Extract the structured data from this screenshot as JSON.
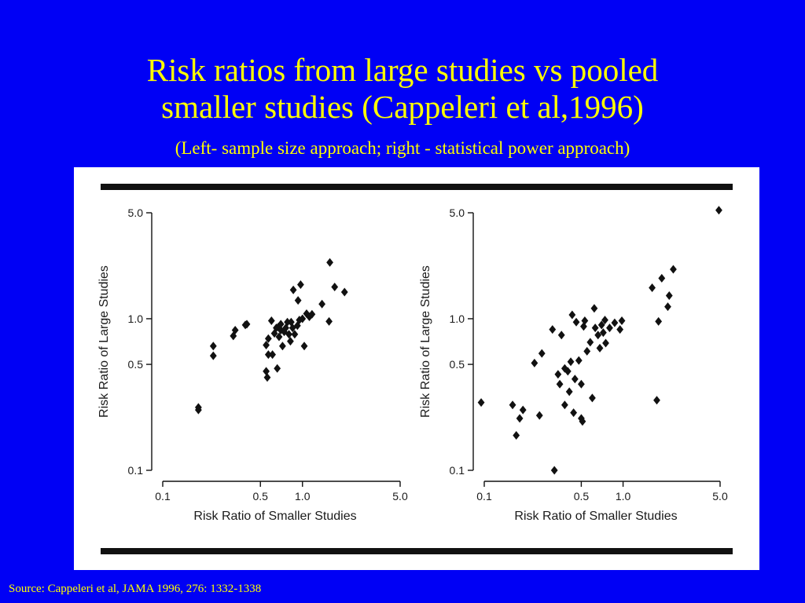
{
  "slide": {
    "title_line1": "Risk ratios from large studies vs pooled",
    "title_line2": "smaller studies (Cappeleri et al,1996)",
    "subtitle": "(Left- sample size approach; right - statistical power approach)",
    "source": "Source: Cappeleri et al, JAMA 1996, 276: 1332-1338",
    "colors": {
      "background": "#0000f5",
      "text": "#ffff00",
      "figure_bg": "#ffffff",
      "ink": "#111111"
    }
  },
  "chart_data": [
    {
      "type": "scatter",
      "title": "",
      "xlabel": "Risk Ratio of Smaller Studies",
      "ylabel": "Risk Ratio of Large Studies",
      "x_scale": "log",
      "y_scale": "log",
      "xlim": [
        0.1,
        5.0
      ],
      "ylim": [
        0.1,
        5.0
      ],
      "x_ticks": [
        {
          "v": 0.1,
          "label": "0.1"
        },
        {
          "v": 0.5,
          "label": "0.5"
        },
        {
          "v": 1.0,
          "label": "1.0"
        },
        {
          "v": 5.0,
          "label": "5.0"
        }
      ],
      "y_ticks": [
        {
          "v": 0.1,
          "label": "0.1"
        },
        {
          "v": 0.5,
          "label": "0.5"
        },
        {
          "v": 1.0,
          "label": "1.0"
        },
        {
          "v": 5.0,
          "label": "5.0"
        }
      ],
      "grid": false,
      "marker": "diamond",
      "points": [
        [
          0.18,
          0.26
        ],
        [
          0.18,
          0.25
        ],
        [
          0.23,
          0.66
        ],
        [
          0.23,
          0.57
        ],
        [
          0.32,
          0.77
        ],
        [
          0.33,
          0.84
        ],
        [
          0.39,
          0.91
        ],
        [
          0.4,
          0.92
        ],
        [
          0.55,
          0.45
        ],
        [
          0.56,
          0.41
        ],
        [
          0.57,
          0.58
        ],
        [
          0.55,
          0.67
        ],
        [
          0.57,
          0.74
        ],
        [
          0.6,
          0.97
        ],
        [
          0.61,
          0.58
        ],
        [
          0.63,
          0.8
        ],
        [
          0.65,
          0.87
        ],
        [
          0.66,
          0.47
        ],
        [
          0.67,
          0.88
        ],
        [
          0.68,
          0.76
        ],
        [
          0.7,
          0.84
        ],
        [
          0.7,
          0.92
        ],
        [
          0.72,
          0.66
        ],
        [
          0.74,
          0.82
        ],
        [
          0.76,
          0.87
        ],
        [
          0.78,
          0.95
        ],
        [
          0.8,
          0.79
        ],
        [
          0.82,
          0.71
        ],
        [
          0.83,
          0.95
        ],
        [
          0.85,
          0.87
        ],
        [
          0.86,
          1.55
        ],
        [
          0.88,
          0.79
        ],
        [
          0.92,
          0.9
        ],
        [
          0.93,
          1.32
        ],
        [
          0.95,
          0.98
        ],
        [
          0.97,
          1.68
        ],
        [
          1.0,
          1.0
        ],
        [
          1.03,
          0.66
        ],
        [
          1.07,
          1.08
        ],
        [
          1.12,
          1.03
        ],
        [
          1.17,
          1.07
        ],
        [
          1.38,
          1.25
        ],
        [
          1.55,
          0.96
        ],
        [
          1.57,
          2.35
        ],
        [
          1.7,
          1.62
        ],
        [
          2.0,
          1.5
        ]
      ]
    },
    {
      "type": "scatter",
      "title": "",
      "xlabel": "Risk Ratio of Smaller Studies",
      "ylabel": "Risk Ratio of Large Studies",
      "x_scale": "log",
      "y_scale": "log",
      "xlim": [
        0.1,
        5.0
      ],
      "ylim": [
        0.1,
        5.0
      ],
      "x_ticks": [
        {
          "v": 0.1,
          "label": "0.1"
        },
        {
          "v": 0.5,
          "label": "0.5"
        },
        {
          "v": 1.0,
          "label": "1.0"
        },
        {
          "v": 5.0,
          "label": "5.0"
        }
      ],
      "y_ticks": [
        {
          "v": 0.1,
          "label": "0.1"
        },
        {
          "v": 0.5,
          "label": "0.5"
        },
        {
          "v": 1.0,
          "label": "1.0"
        },
        {
          "v": 5.0,
          "label": "5.0"
        }
      ],
      "grid": false,
      "marker": "diamond",
      "points": [
        [
          0.095,
          0.28
        ],
        [
          0.16,
          0.27
        ],
        [
          0.17,
          0.17
        ],
        [
          0.18,
          0.22
        ],
        [
          0.19,
          0.25
        ],
        [
          0.23,
          0.51
        ],
        [
          0.25,
          0.23
        ],
        [
          0.26,
          0.59
        ],
        [
          0.31,
          0.85
        ],
        [
          0.32,
          0.1
        ],
        [
          0.34,
          0.43
        ],
        [
          0.35,
          0.37
        ],
        [
          0.36,
          0.78
        ],
        [
          0.38,
          0.27
        ],
        [
          0.38,
          0.47
        ],
        [
          0.4,
          0.45
        ],
        [
          0.41,
          0.33
        ],
        [
          0.42,
          0.52
        ],
        [
          0.43,
          1.06
        ],
        [
          0.44,
          0.24
        ],
        [
          0.45,
          0.4
        ],
        [
          0.46,
          0.95
        ],
        [
          0.48,
          0.53
        ],
        [
          0.5,
          0.37
        ],
        [
          0.5,
          0.22
        ],
        [
          0.51,
          0.21
        ],
        [
          0.52,
          0.89
        ],
        [
          0.53,
          0.97
        ],
        [
          0.55,
          0.61
        ],
        [
          0.58,
          0.7
        ],
        [
          0.6,
          0.3
        ],
        [
          0.62,
          1.17
        ],
        [
          0.63,
          0.87
        ],
        [
          0.66,
          0.78
        ],
        [
          0.68,
          0.64
        ],
        [
          0.7,
          0.91
        ],
        [
          0.72,
          0.81
        ],
        [
          0.74,
          0.98
        ],
        [
          0.75,
          0.69
        ],
        [
          0.8,
          0.87
        ],
        [
          0.87,
          0.94
        ],
        [
          0.95,
          0.85
        ],
        [
          0.98,
          0.97
        ],
        [
          1.62,
          1.6
        ],
        [
          1.75,
          0.29
        ],
        [
          1.8,
          0.96
        ],
        [
          1.9,
          1.85
        ],
        [
          2.1,
          1.2
        ],
        [
          2.15,
          1.42
        ],
        [
          2.3,
          2.12
        ],
        [
          4.9,
          5.2
        ]
      ]
    }
  ]
}
